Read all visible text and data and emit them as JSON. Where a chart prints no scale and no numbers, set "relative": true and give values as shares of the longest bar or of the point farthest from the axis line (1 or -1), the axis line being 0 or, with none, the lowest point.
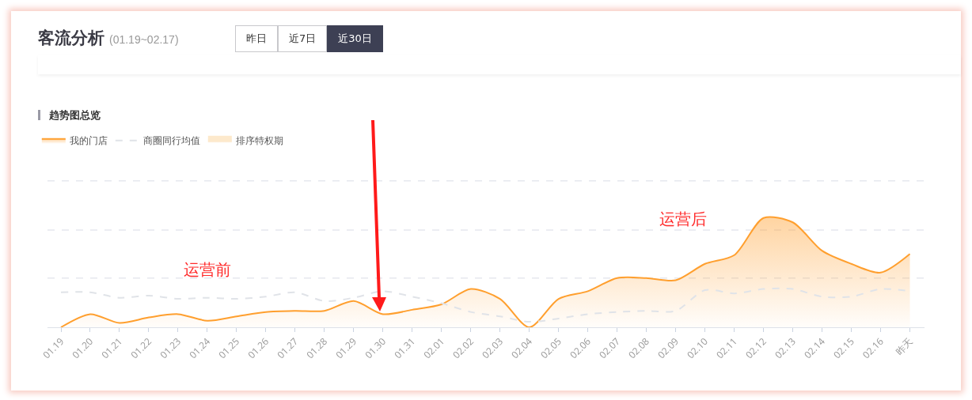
{
  "chart_data": {
    "type": "line",
    "title": "客流分析",
    "subtitle": "(01.19~02.17)",
    "annotations": [
      "昨日",
      "近7日",
      "近30日",
      "趋势图总览",
      "运营前",
      "运营后"
    ],
    "categories": [
      "01.19",
      "01.20",
      "01.21",
      "01.22",
      "01.23",
      "01.24",
      "01.25",
      "01.26",
      "01.27",
      "01.28",
      "01.29",
      "01.30",
      "01.31",
      "02.01",
      "02.02",
      "02.03",
      "02.04",
      "02.05",
      "02.06",
      "02.07",
      "02.08",
      "02.09",
      "02.10",
      "02.11",
      "02.12",
      "02.13",
      "02.14",
      "02.15",
      "02.16",
      "昨天"
    ],
    "relative": true,
    "legend": "top left",
    "marker": "none",
    "ref_lines": [
      {
        "axis": "y",
        "value": 0.45,
        "color": "#e6e8ee",
        "line_style": "dashed"
      },
      {
        "axis": "y",
        "value": 0.89,
        "color": "#e6e8ee",
        "line_style": "dashed"
      },
      {
        "axis": "y",
        "value": 1.34,
        "color": "#e6e8ee",
        "line_style": "dashed"
      }
    ],
    "series": [
      {
        "name": "我的门店",
        "type": "area",
        "color": "#ff9f2e",
        "values": [
          0,
          0.12,
          0.04,
          0.09,
          0.12,
          0.06,
          0.1,
          0.14,
          0.15,
          0.15,
          0.24,
          0.12,
          0.16,
          0.21,
          0.35,
          0.26,
          0,
          0.26,
          0.33,
          0.45,
          0.45,
          0.43,
          0.58,
          0.66,
          1,
          0.96,
          0.7,
          0.58,
          0.5,
          0.67
        ]
      },
      {
        "name": "商圈同行均值",
        "type": "line",
        "line_style": "dashed",
        "color": "#e0e3e8",
        "values": [
          0.32,
          0.32,
          0.27,
          0.29,
          0.26,
          0.27,
          0.26,
          0.28,
          0.32,
          0.24,
          0.27,
          0.33,
          0.28,
          0.22,
          0.14,
          0.1,
          0.05,
          0.08,
          0.12,
          0.14,
          0.15,
          0.15,
          0.34,
          0.31,
          0.35,
          0.35,
          0.28,
          0.28,
          0.35,
          0.33
        ]
      },
      {
        "name": "排序特权期",
        "type": "area",
        "color": "#fde9cc",
        "values": [
          null,
          null,
          null,
          null,
          null,
          null,
          null,
          null,
          null,
          null,
          null,
          null,
          null,
          null,
          null,
          null,
          null,
          null,
          null,
          null,
          null,
          null,
          null,
          null,
          null,
          null,
          null,
          null,
          null,
          null
        ]
      }
    ]
  }
}
